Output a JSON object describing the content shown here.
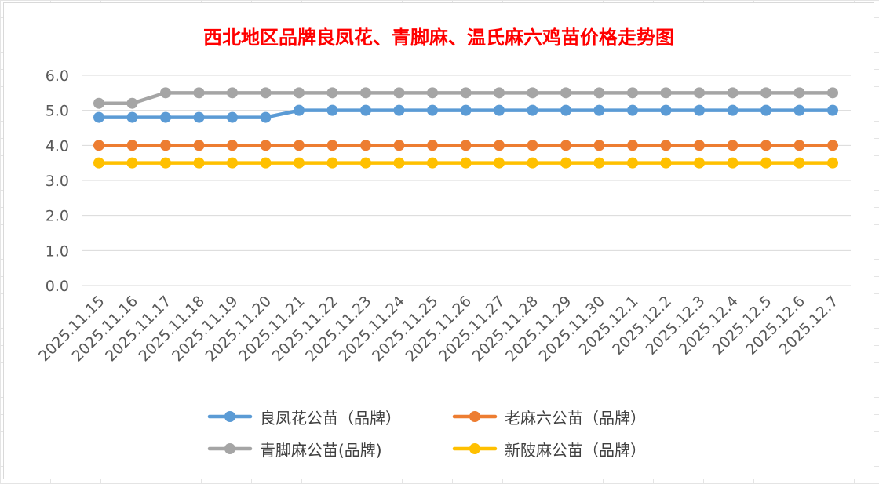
{
  "chart_data": {
    "type": "line",
    "title": "西北地区品牌良凤花、青脚麻、温氏麻六鸡苗价格走势图",
    "categories": [
      "2025.11.15",
      "2025.11.16",
      "2025.11.17",
      "2025.11.18",
      "2025.11.19",
      "2025.11.20",
      "2025.11.21",
      "2025.11.22",
      "2025.11.23",
      "2025.11.24",
      "2025.11.25",
      "2025.11.26",
      "2025.11.27",
      "2025.11.28",
      "2025.11.29",
      "2025.11.30",
      "2025.12.1",
      "2025.12.2",
      "2025.12.3",
      "2025.12.4",
      "2025.12.5",
      "2025.12.6",
      "2025.12.7"
    ],
    "ylim": [
      0,
      6
    ],
    "yticks": [
      "0.0",
      "1.0",
      "2.0",
      "3.0",
      "4.0",
      "5.0",
      "6.0"
    ],
    "grid": true,
    "legend_position": "bottom",
    "series": [
      {
        "name": "良凤花公苗（品牌）",
        "color": "#5b9bd5",
        "values": [
          4.8,
          4.8,
          4.8,
          4.8,
          4.8,
          4.8,
          5.0,
          5.0,
          5.0,
          5.0,
          5.0,
          5.0,
          5.0,
          5.0,
          5.0,
          5.0,
          5.0,
          5.0,
          5.0,
          5.0,
          5.0,
          5.0,
          5.0
        ]
      },
      {
        "name": "老麻六公苗（品牌）",
        "color": "#ed7d31",
        "values": [
          4.0,
          4.0,
          4.0,
          4.0,
          4.0,
          4.0,
          4.0,
          4.0,
          4.0,
          4.0,
          4.0,
          4.0,
          4.0,
          4.0,
          4.0,
          4.0,
          4.0,
          4.0,
          4.0,
          4.0,
          4.0,
          4.0,
          4.0
        ]
      },
      {
        "name": "青脚麻公苗(品牌)",
        "color": "#a5a5a5",
        "values": [
          5.2,
          5.2,
          5.5,
          5.5,
          5.5,
          5.5,
          5.5,
          5.5,
          5.5,
          5.5,
          5.5,
          5.5,
          5.5,
          5.5,
          5.5,
          5.5,
          5.5,
          5.5,
          5.5,
          5.5,
          5.5,
          5.5,
          5.5
        ]
      },
      {
        "name": "新陂麻公苗（品牌）",
        "color": "#ffc000",
        "values": [
          3.5,
          3.5,
          3.5,
          3.5,
          3.5,
          3.5,
          3.5,
          3.5,
          3.5,
          3.5,
          3.5,
          3.5,
          3.5,
          3.5,
          3.5,
          3.5,
          3.5,
          3.5,
          3.5,
          3.5,
          3.5,
          3.5,
          3.5
        ]
      }
    ]
  }
}
